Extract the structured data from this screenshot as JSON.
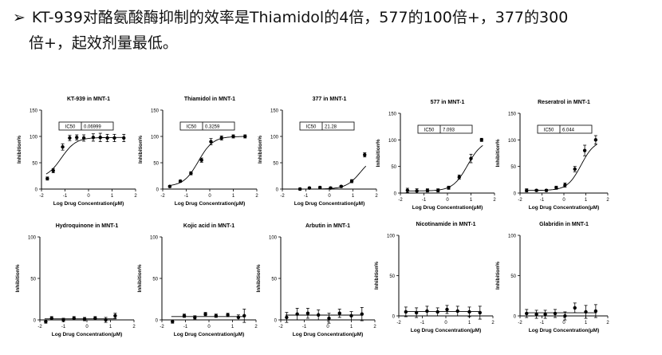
{
  "headline": {
    "bullet": "➢",
    "line1": "KT-939对酪氨酸酶抑制的效率是Thiamidol的4倍，577的100倍+，377的300",
    "line2": "倍+，起效剂量最低。"
  },
  "chart_data": [
    {
      "type": "scatter",
      "title": "KT-939 in MNT-1",
      "xlabel": "Log Drug Concentration(μM)",
      "ylabel": "Inhibition%",
      "xlim": [
        -2,
        2
      ],
      "ylim": [
        0,
        150
      ],
      "xticks": [
        "-2",
        "-1",
        "0",
        "1",
        "2"
      ],
      "yticks": [
        "0",
        "50",
        "100",
        "150"
      ],
      "ic50_label": "IC50",
      "ic50_value": "0.06999",
      "x": [
        -1.75,
        -1.5,
        -1.1,
        -0.8,
        -0.5,
        -0.2,
        0.2,
        0.5,
        0.8,
        1.1,
        1.5
      ],
      "y": [
        20,
        35,
        80,
        97,
        98,
        97,
        98,
        98,
        97,
        97,
        97
      ],
      "err": [
        3,
        4,
        6,
        5,
        5,
        6,
        7,
        8,
        7,
        7,
        7
      ]
    },
    {
      "type": "scatter",
      "title": "Thiamidol in MNT-1",
      "xlabel": "Log Drug Concentration(μM)",
      "ylabel": "Inhibition%",
      "xlim": [
        -2,
        2
      ],
      "ylim": [
        0,
        150
      ],
      "xticks": [
        "-2",
        "-1",
        "0",
        "1",
        "2"
      ],
      "yticks": [
        "0",
        "50",
        "100",
        "150"
      ],
      "ic50_label": "IC50",
      "ic50_value": "0.3259",
      "x": [
        -1.7,
        -1.25,
        -0.8,
        -0.35,
        0.05,
        0.5,
        1.0,
        1.5
      ],
      "y": [
        5,
        15,
        30,
        55,
        90,
        97,
        100,
        100
      ],
      "err": [
        2,
        2,
        3,
        4,
        6,
        4,
        3,
        3
      ]
    },
    {
      "type": "scatter",
      "title": "377 in MNT-1",
      "xlabel": "Log Drug Concentration(μM)",
      "ylabel": "Inhibition%",
      "xlim": [
        -2,
        2
      ],
      "ylim": [
        0,
        150
      ],
      "xticks": [
        "-2",
        "-1",
        "0",
        "1",
        "2"
      ],
      "yticks": [
        "0",
        "50",
        "100",
        "150"
      ],
      "ic50_label": "IC50",
      "ic50_value": "21.28",
      "x": [
        -1.25,
        -0.85,
        -0.4,
        0.05,
        0.5,
        0.95,
        1.5
      ],
      "y": [
        0,
        2,
        3,
        2,
        5,
        15,
        65
      ],
      "err": [
        2,
        2,
        2,
        2,
        2,
        3,
        4
      ]
    },
    {
      "type": "scatter",
      "title": "577 in MNT-1",
      "xlabel": "Log Drug Concentration(μM)",
      "ylabel": "Inhibition%",
      "xlim": [
        -2,
        2
      ],
      "ylim": [
        0,
        150
      ],
      "xticks": [
        "-2",
        "-1",
        "0",
        "1",
        "2"
      ],
      "yticks": [
        "0",
        "50",
        "100",
        "150"
      ],
      "ic50_label": "IC50",
      "ic50_value": "7.093",
      "x": [
        -1.7,
        -1.3,
        -0.85,
        -0.4,
        0.05,
        0.5,
        1.0,
        1.45
      ],
      "y": [
        5,
        4,
        5,
        5,
        10,
        30,
        65,
        100
      ],
      "err": [
        4,
        4,
        3,
        3,
        3,
        4,
        8,
        3
      ]
    },
    {
      "type": "scatter",
      "title": "Reseratrol in MNT-1",
      "xlabel": "Log Drug Concentration(μM)",
      "ylabel": "Inhibition%",
      "xlim": [
        -2,
        2
      ],
      "ylim": [
        0,
        150
      ],
      "xticks": [
        "-2",
        "-1",
        "0",
        "1",
        "2"
      ],
      "yticks": [
        "0",
        "50",
        "100",
        "150"
      ],
      "ic50_label": "IC50",
      "ic50_value": "6.044",
      "x": [
        -1.7,
        -1.25,
        -0.8,
        -0.35,
        0.05,
        0.5,
        0.95,
        1.45
      ],
      "y": [
        5,
        5,
        5,
        10,
        15,
        45,
        80,
        100
      ],
      "err": [
        3,
        2,
        2,
        3,
        4,
        5,
        10,
        8
      ]
    },
    {
      "type": "scatter",
      "title": "Hydroquinone in MNT-1",
      "xlabel": "Log Drug Concentration(μM)",
      "ylabel": "Inhibition%",
      "xlim": [
        -2,
        2
      ],
      "ylim": [
        0,
        100
      ],
      "xticks": [
        "-2",
        "-1",
        "0",
        "1",
        "2"
      ],
      "yticks": [
        "0",
        "50",
        "100"
      ],
      "x": [
        -1.75,
        -1.5,
        -1.0,
        -0.55,
        -0.1,
        0.35,
        0.8,
        1.2
      ],
      "y": [
        -2,
        2,
        0,
        2,
        1,
        2,
        0,
        5
      ],
      "err": [
        2,
        2,
        2,
        2,
        2,
        2,
        3,
        3
      ]
    },
    {
      "type": "scatter",
      "title": "Kojic acid in MNT-1",
      "xlabel": "Log Drug Concentration(μM)",
      "ylabel": "Inhibition%",
      "xlim": [
        -2,
        2
      ],
      "ylim": [
        0,
        100
      ],
      "xticks": [
        "-2",
        "-1",
        "0",
        "1",
        "2"
      ],
      "yticks": [
        "0",
        "50",
        "100"
      ],
      "x": [
        -1.55,
        -1.05,
        -0.6,
        -0.15,
        0.3,
        0.8,
        1.25,
        1.5
      ],
      "y": [
        -2,
        5,
        3,
        7,
        5,
        6,
        3,
        5
      ],
      "err": [
        2,
        2,
        2,
        2,
        2,
        2,
        3,
        8
      ]
    },
    {
      "type": "scatter",
      "title": "Arbutin in MNT-1",
      "xlabel": "Log Drug Concentration(μM)",
      "ylabel": "Inhibition%",
      "xlim": [
        -2,
        2
      ],
      "ylim": [
        0,
        100
      ],
      "xticks": [
        "-2",
        "-1",
        "0",
        "1",
        "2"
      ],
      "yticks": [
        "0",
        "50",
        "100"
      ],
      "x": [
        -1.75,
        -1.3,
        -0.85,
        -0.4,
        0.05,
        0.5,
        1.0,
        1.45
      ],
      "y": [
        3,
        7,
        8,
        6,
        2,
        8,
        5,
        7
      ],
      "err": [
        6,
        7,
        6,
        6,
        6,
        5,
        5,
        8
      ]
    },
    {
      "type": "scatter",
      "title": "Nicotinamide in MNT-1",
      "xlabel": "Log Drug Concentration(μM)",
      "ylabel": "Inhibition%",
      "xlim": [
        -2,
        2
      ],
      "ylim": [
        0,
        100
      ],
      "xticks": [
        "-2",
        "-1",
        "0",
        "1",
        "2"
      ],
      "yticks": [
        "0",
        "50",
        "100"
      ],
      "x": [
        -1.7,
        -1.25,
        -0.8,
        -0.35,
        0.05,
        0.5,
        1.0,
        1.45
      ],
      "y": [
        5,
        4,
        6,
        5,
        8,
        6,
        5,
        4
      ],
      "err": [
        6,
        6,
        6,
        5,
        5,
        6,
        6,
        8
      ]
    },
    {
      "type": "scatter",
      "title": "Glabridin in MNT-1",
      "xlabel": "Log Drug Concentration(μM)",
      "ylabel": "Inhibition%",
      "xlim": [
        -2,
        2
      ],
      "ylim": [
        0,
        100
      ],
      "xticks": [
        "-2",
        "-1",
        "0",
        "1",
        "2"
      ],
      "yticks": [
        "0",
        "50",
        "100"
      ],
      "x": [
        -1.7,
        -1.25,
        -0.85,
        -0.4,
        0.05,
        0.5,
        1.0,
        1.45
      ],
      "y": [
        3,
        2,
        2,
        3,
        0,
        10,
        5,
        6
      ],
      "err": [
        5,
        5,
        5,
        5,
        5,
        6,
        8,
        8
      ]
    }
  ]
}
